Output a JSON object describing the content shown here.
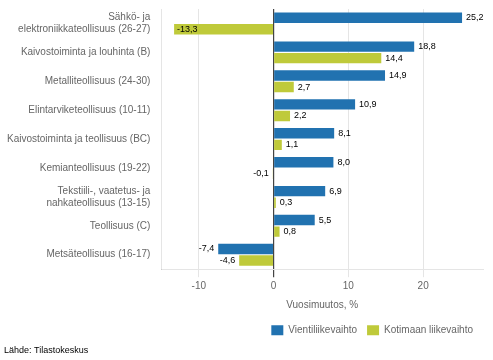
{
  "chart_data": {
    "type": "bar",
    "orientation": "horizontal",
    "categories": [
      "Sähkö- ja\nelektroniikkateollisuus (26-27)",
      "Kaivostoiminta ja louhinta (B)",
      "Metalliteollisuus (24-30)",
      "Elintarviketeollisuus (10-11)",
      "Kaivostoiminta ja teollisuus (BC)",
      "Kemianteollisuus (19-22)",
      "Tekstiili-, vaatetus- ja\nnahkateollisuus (13-15)",
      "Teollisuus (C)",
      "Metsäteollisuus (16-17)"
    ],
    "series": [
      {
        "name": "Vientiliikevaihto",
        "color": "#2172B0",
        "values": [
          25.2,
          18.8,
          14.9,
          10.9,
          8.1,
          8.0,
          6.9,
          5.5,
          -7.4
        ],
        "value_labels": [
          "25,2",
          "18,8",
          "14,9",
          "10,9",
          "8,1",
          "8,0",
          "6,9",
          "5,5",
          "-7,4"
        ]
      },
      {
        "name": "Kotimaan liikevaihto",
        "color": "#BFCA3A",
        "values": [
          -13.3,
          14.4,
          2.7,
          2.2,
          1.1,
          -0.1,
          0.3,
          0.8,
          -4.6
        ],
        "value_labels": [
          "-13,3",
          "14,4",
          "2,7",
          "2,2",
          "1,1",
          "-0,1",
          "0,3",
          "0,8",
          "-4,6"
        ]
      }
    ],
    "xlabel": "Vuosimuutos, %",
    "xlim": [
      -15,
      28
    ],
    "xticks": [
      -10,
      0,
      10,
      20
    ],
    "grid": true,
    "legend": "lower right",
    "data_labels": true,
    "annotations": [
      "Lähde: Tilastokeskus"
    ]
  }
}
